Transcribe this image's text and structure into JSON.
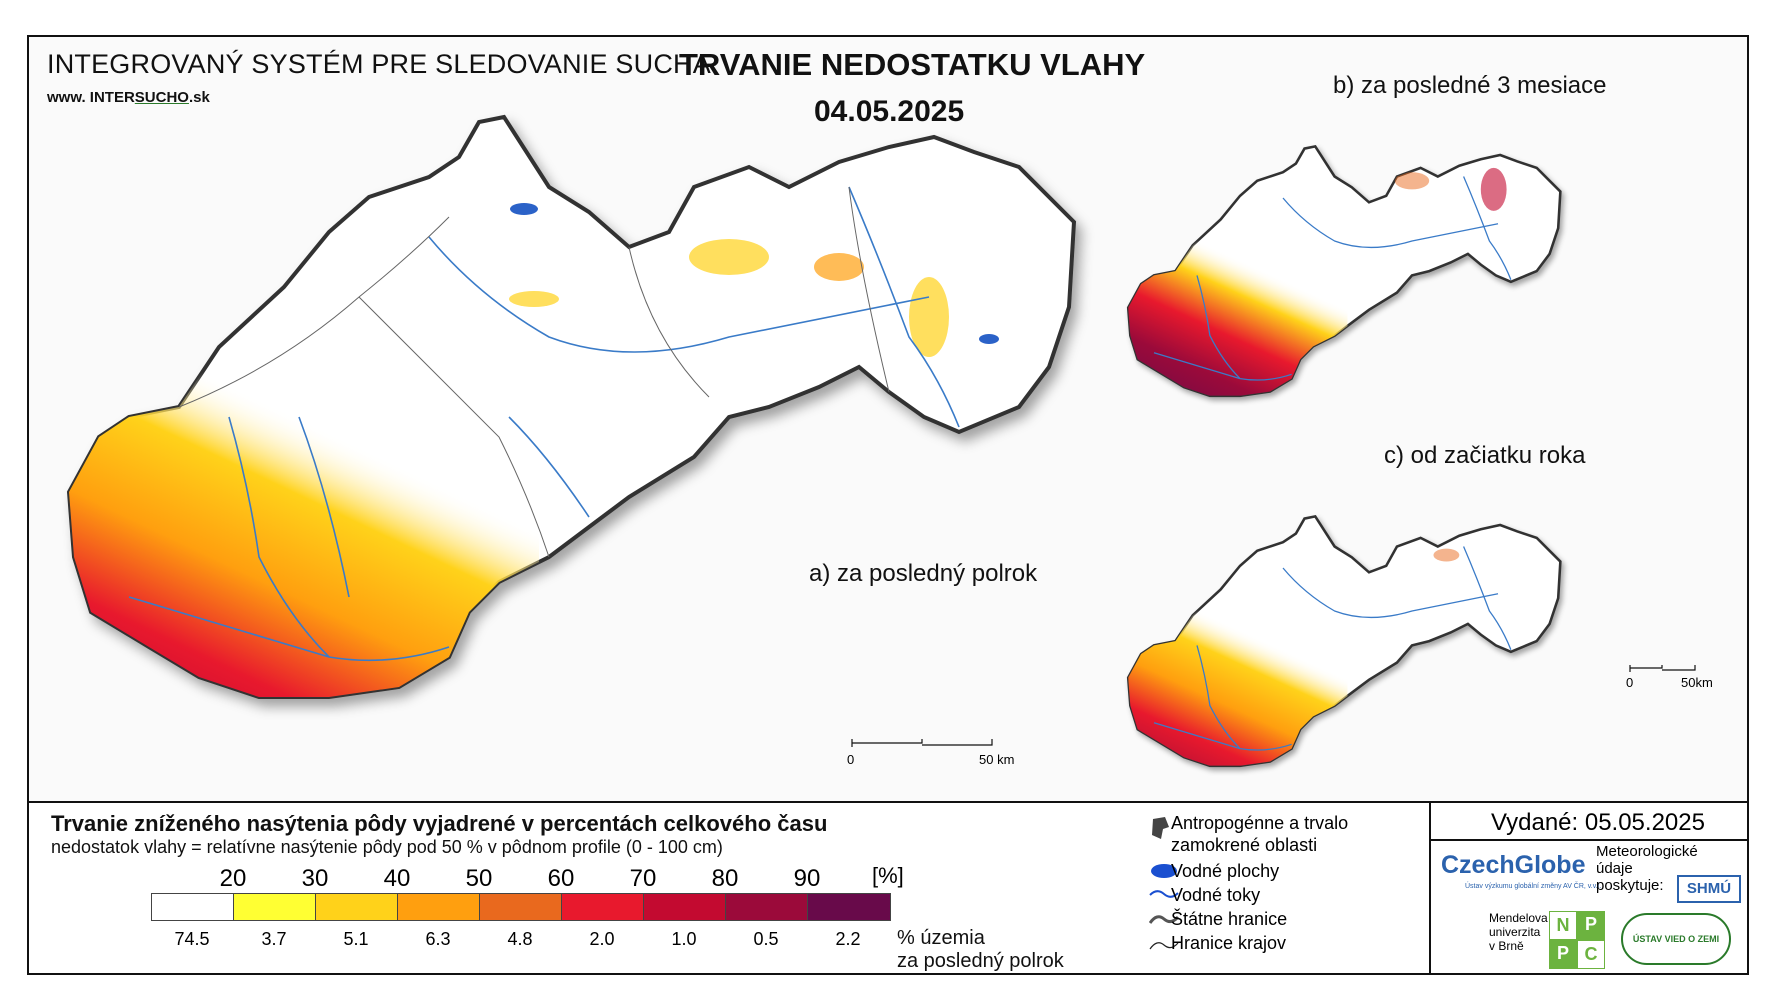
{
  "header": {
    "system_title": "INTEGROVANÝ SYSTÉM PRE SLEDOVANIE SUCHA",
    "www_prefix": "www. INTER",
    "www_site": "SUCHO",
    "www_suffix": ".sk",
    "main_title": "TRVANIE NEDOSTATKU VLAHY",
    "date": "04.05.2025"
  },
  "maps": {
    "a_label": "a) za posledný polrok",
    "b_label": "b) za posledné 3 mesiace",
    "c_label": "c) od začiatku roka",
    "scale_main": [
      "0",
      "50 km"
    ],
    "scale_small": [
      "0",
      "50km"
    ]
  },
  "legend": {
    "title": "Trvanie zníženého nasýtenia pôdy vyjadrené v percentách celkového času",
    "subtitle": "nedostatok vlahy = relatívne nasýtenie pôdy pod 50 % v pôdnom profile (0 - 100 cm)",
    "ticks": [
      "20",
      "30",
      "40",
      "50",
      "60",
      "70",
      "80",
      "90"
    ],
    "unit": "[%]",
    "bin_colors": [
      "#ffffff",
      "#ffff33",
      "#ffd21a",
      "#ff9f0f",
      "#e9691e",
      "#e8192d",
      "#c30a30",
      "#9b0a3a",
      "#680a4a"
    ],
    "percentages": [
      "74.5",
      "3.7",
      "5.1",
      "6.3",
      "4.8",
      "2.0",
      "1.0",
      "0.5",
      "2.2"
    ],
    "pct_note_1": "% územia",
    "pct_note_2": "za posledný polrok"
  },
  "key": {
    "anthropogenic_1": "Antropogénne a trvalo",
    "anthropogenic_2": "zamokrené oblasti",
    "water_bodies": "Vodné plochy",
    "rivers": "Vodné toky",
    "state_border": "Štátne hranice",
    "region_border": "Hranice krajov"
  },
  "issued": {
    "label": "Vydané: 05.05.2025",
    "czechglobe": "CzechGlobe",
    "czechglobe_sub": "Ústav výzkumu globální změny AV ČR, v.v.i.",
    "meteo_1": "Meteorologické",
    "meteo_2": "údaje",
    "meteo_3": "poskytuje:",
    "shmu": "SHMÚ",
    "mendel_1": "Mendelova",
    "mendel_2": "univerzita",
    "mendel_3": "v Brně",
    "nppc": [
      "N",
      "P",
      "P",
      "C"
    ],
    "uvz": "ÚSTAV VIED O ZEMI"
  }
}
